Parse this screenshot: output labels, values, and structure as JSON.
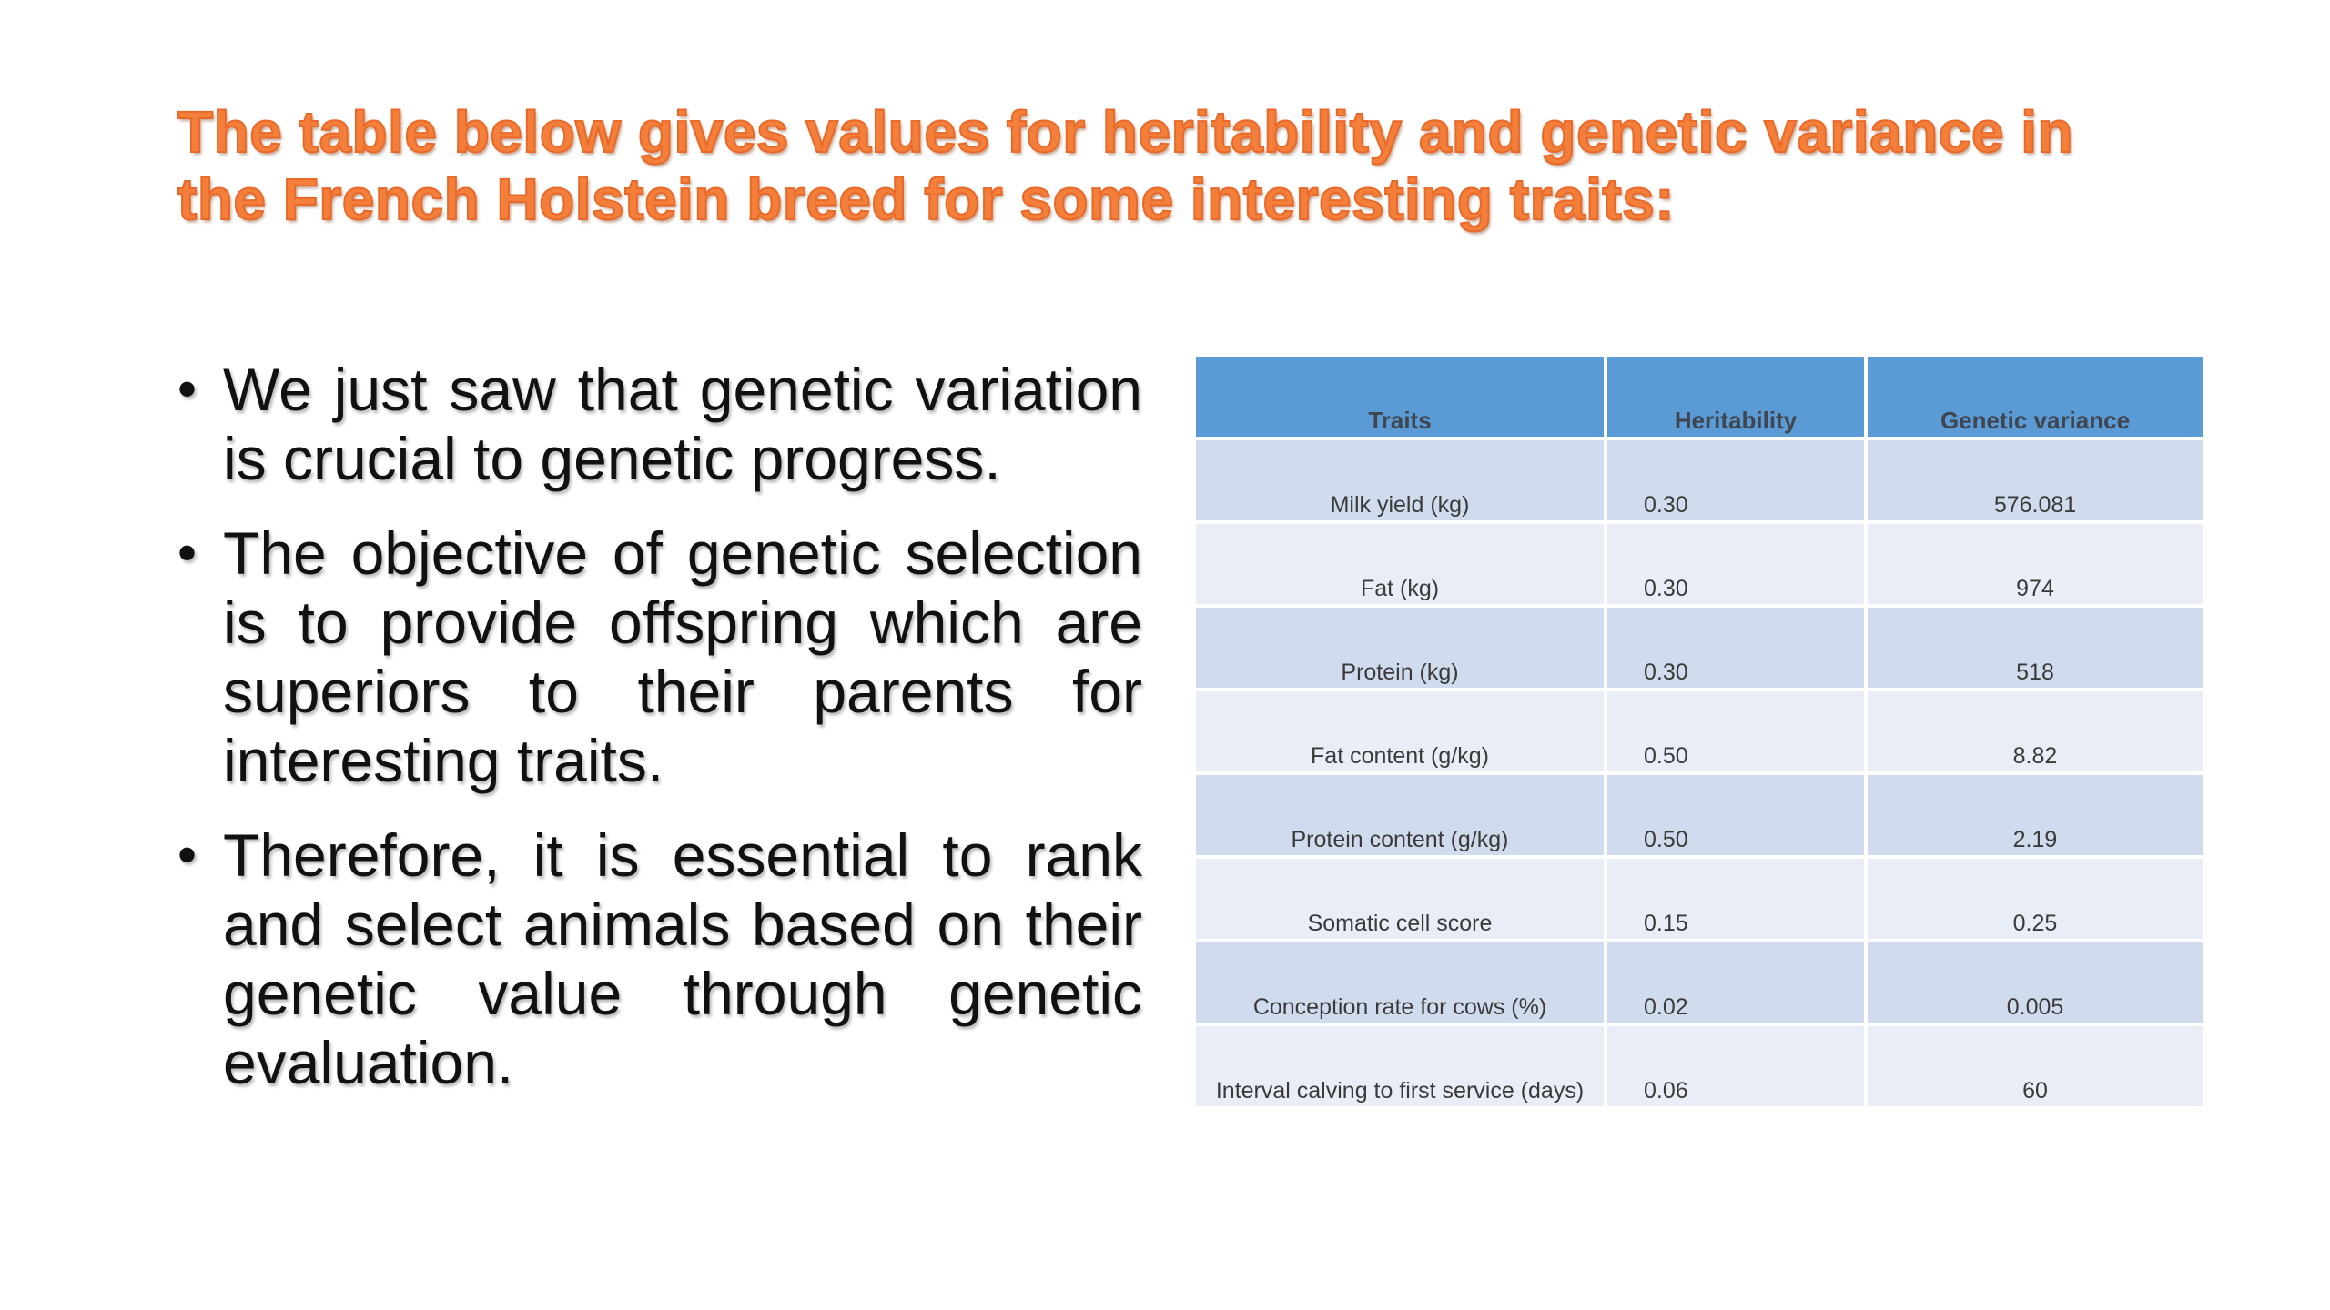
{
  "title": {
    "line1": "The table below gives values for heritability and genetic variance in",
    "line2": "the French Holstein breed for some interesting traits:"
  },
  "bullets": [
    "We just saw that genetic variation is crucial to genetic progress.",
    "The objective of genetic selection is to provide offspring which are superiors to their parents for interesting traits.",
    "Therefore, it is essential to rank and select animals based on their genetic value through genetic evaluation."
  ],
  "table": {
    "headers": [
      "Traits",
      "Heritability",
      "Genetic variance"
    ],
    "rows": [
      [
        "Milk yield (kg)",
        "0.30",
        "576.081"
      ],
      [
        "Fat (kg)",
        "0.30",
        "974"
      ],
      [
        "Protein (kg)",
        "0.30",
        "518"
      ],
      [
        "Fat content (g/kg)",
        "0.50",
        "8.82"
      ],
      [
        "Protein content (g/kg)",
        "0.50",
        "2.19"
      ],
      [
        "Somatic cell score",
        "0.15",
        "0.25"
      ],
      [
        "Conception rate for cows (%)",
        "0.02",
        "0.005"
      ],
      [
        "Interval calving to first service (days)",
        "0.06",
        "60"
      ]
    ]
  },
  "colors": {
    "title": "#f47f3a",
    "header": "#5b9bd5",
    "row_odd": "#d0dcee",
    "row_even": "#e9edf6"
  }
}
